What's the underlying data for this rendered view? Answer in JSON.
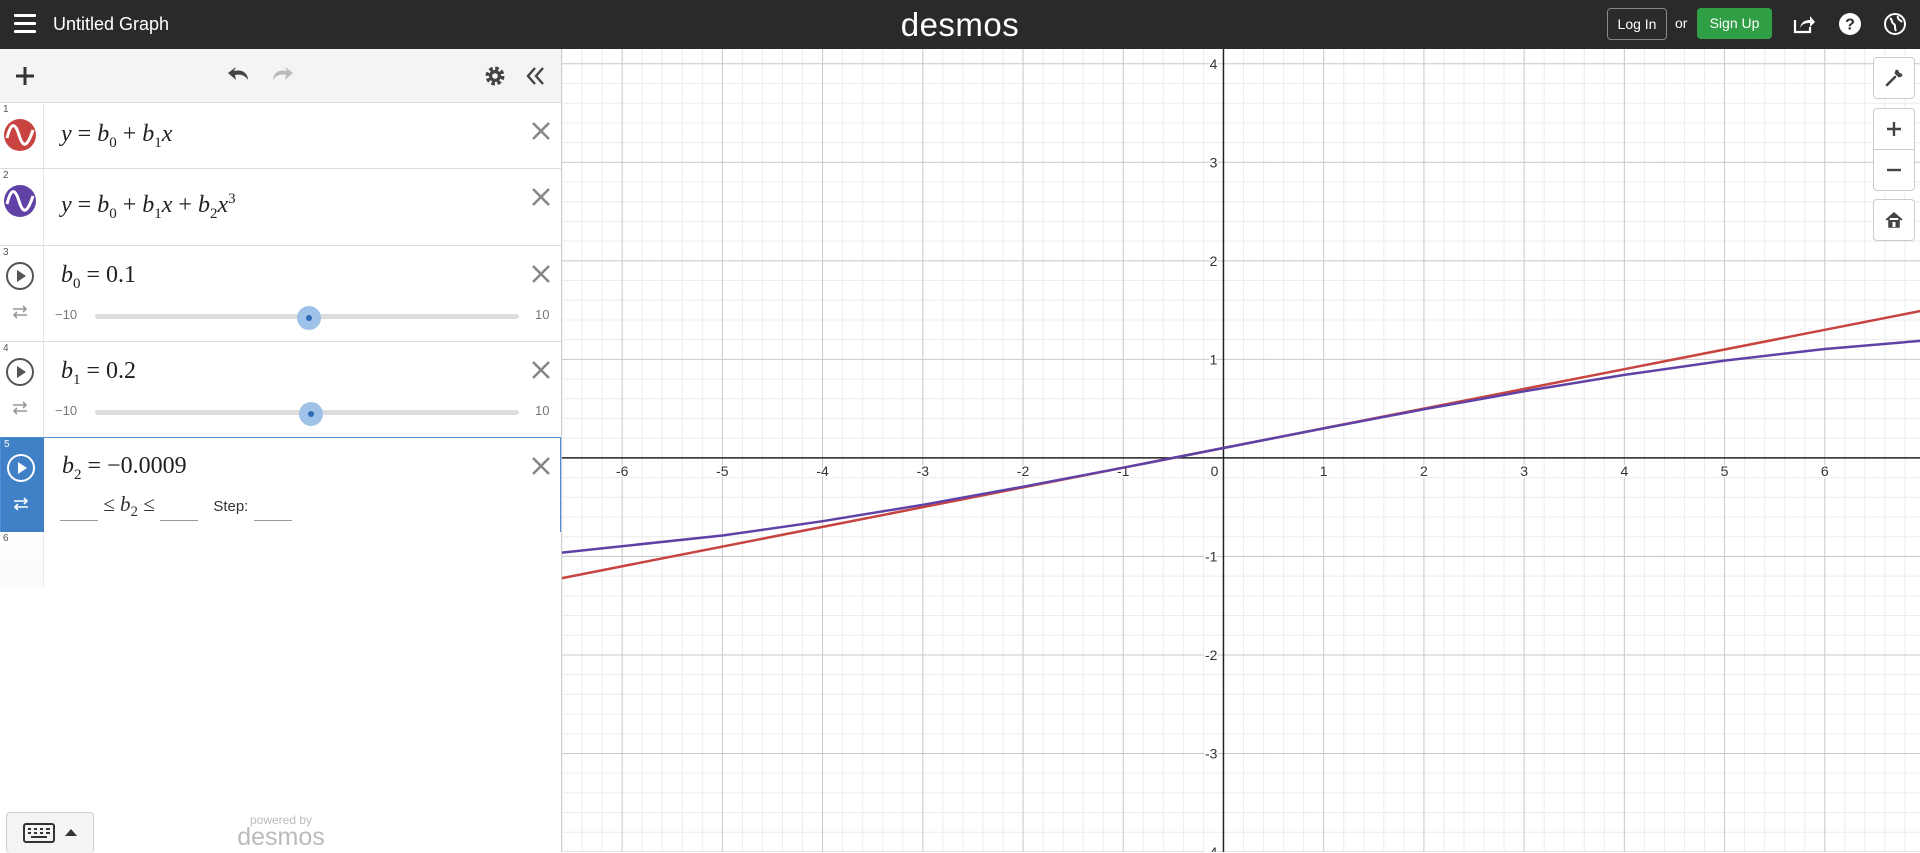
{
  "header": {
    "title": "Untitled Graph",
    "brand": "desmos",
    "login_label": "Log In",
    "or_label": "or",
    "signup_label": "Sign Up",
    "signup_color": "#2f9e44",
    "icons": [
      "menu-icon",
      "share-icon",
      "help-icon",
      "globe-icon"
    ]
  },
  "toolbar": {
    "icons": [
      "add-icon",
      "undo-icon",
      "redo-icon",
      "settings-icon",
      "collapse-icon"
    ]
  },
  "expressions": [
    {
      "index": "1",
      "type": "graph",
      "color": "#c74440",
      "latex": "y = b0 + b1x"
    },
    {
      "index": "2",
      "type": "graph",
      "color": "#6042a6",
      "latex": "y = b0 + b1x + b2x3"
    },
    {
      "index": "3",
      "type": "slider",
      "name": "b0",
      "value": "0.1",
      "min": "−10",
      "max": "10",
      "fraction": 0.505
    },
    {
      "index": "4",
      "type": "slider",
      "name": "b1",
      "value": "0.2",
      "min": "−10",
      "max": "10",
      "fraction": 0.51
    },
    {
      "index": "5",
      "type": "slider-selected",
      "name": "b2",
      "value": "−0.0009",
      "step_label": "Step:"
    },
    {
      "index": "6",
      "type": "empty"
    }
  ],
  "footer": {
    "powered_by": "powered by",
    "powered_brand": "desmos"
  },
  "graph_controls": [
    "wrench-icon",
    "zoom-in-icon",
    "zoom-out-icon",
    "home-icon"
  ],
  "chart_data": {
    "type": "line",
    "xlim": [
      -6.6,
      6.95
    ],
    "ylim": [
      -4.0,
      4.15
    ],
    "x_ticks": [
      "-6",
      "-5",
      "-4",
      "-3",
      "-2",
      "-1",
      "0",
      "1",
      "2",
      "3",
      "4",
      "5",
      "6"
    ],
    "y_ticks": [
      "4",
      "3",
      "2",
      "1",
      "-1",
      "-2",
      "-3",
      "-4"
    ],
    "grid": true,
    "parameters": {
      "b0": 0.1,
      "b1": 0.2,
      "b2": -0.0009
    },
    "series": [
      {
        "color": "#c74440",
        "x": [
          -6.6,
          -4,
          -2,
          0,
          2,
          4,
          6.95
        ],
        "y": [
          -1.22,
          -0.7,
          -0.3,
          0.1,
          0.5,
          0.9,
          1.49
        ]
      },
      {
        "color": "#6042a6",
        "x": [
          -6.6,
          -5,
          -4,
          -3,
          -2,
          -1,
          0,
          1,
          2,
          3,
          4,
          5,
          6,
          6.95
        ],
        "y": [
          -0.961,
          -0.7875,
          -0.6424,
          -0.4757,
          -0.2928,
          -0.0991,
          0.1,
          0.2991,
          0.4928,
          0.6757,
          0.8424,
          0.9875,
          1.1056,
          1.1878
        ]
      }
    ]
  }
}
